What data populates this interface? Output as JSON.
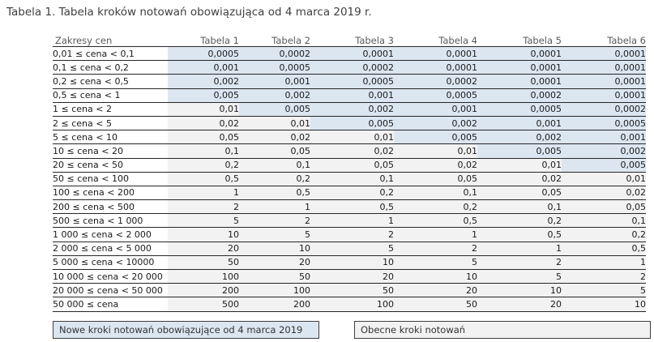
{
  "title": "Tabela 1. Tabela kroków notowań obowiązująca od 4 marca 2019 r.",
  "colors": {
    "new_fill": "#dce6f1",
    "current_fill": "#f2f2f2"
  },
  "table": {
    "columns": [
      "Zakresy cen",
      "Tabela 1",
      "Tabela 2",
      "Tabela 3",
      "Tabela 4",
      "Tabela 5",
      "Tabela 6"
    ],
    "rows": [
      {
        "range": "0,01 ≤ cena < 0,1",
        "values": [
          "0,0005",
          "0,0002",
          "0,0001",
          "0,0001",
          "0,0001",
          "0,0001"
        ],
        "new_flags": [
          true,
          true,
          true,
          true,
          true,
          true
        ]
      },
      {
        "range": "0,1 ≤ cena < 0,2",
        "values": [
          "0,001",
          "0,0005",
          "0,0002",
          "0,0001",
          "0,0001",
          "0,0001"
        ],
        "new_flags": [
          true,
          true,
          true,
          true,
          true,
          true
        ]
      },
      {
        "range": "0,2 ≤ cena < 0,5",
        "values": [
          "0,002",
          "0,001",
          "0,0005",
          "0,0002",
          "0,0001",
          "0,0001"
        ],
        "new_flags": [
          true,
          true,
          true,
          true,
          true,
          true
        ]
      },
      {
        "range": "0,5 ≤ cena < 1",
        "values": [
          "0,005",
          "0,002",
          "0,001",
          "0,0005",
          "0,0002",
          "0,0001"
        ],
        "new_flags": [
          true,
          true,
          true,
          true,
          true,
          true
        ]
      },
      {
        "range": "1 ≤ cena < 2",
        "values": [
          "0,01",
          "0,005",
          "0,002",
          "0,001",
          "0,0005",
          "0,0002"
        ],
        "new_flags": [
          false,
          true,
          true,
          true,
          true,
          true
        ]
      },
      {
        "range": "2 ≤ cena < 5",
        "values": [
          "0,02",
          "0,01",
          "0,005",
          "0,002",
          "0,001",
          "0,0005"
        ],
        "new_flags": [
          false,
          false,
          true,
          true,
          true,
          true
        ]
      },
      {
        "range": "5 ≤ cena < 10",
        "values": [
          "0,05",
          "0,02",
          "0,01",
          "0,005",
          "0,002",
          "0,001"
        ],
        "new_flags": [
          false,
          false,
          false,
          true,
          true,
          true
        ]
      },
      {
        "range": "10 ≤ cena < 20",
        "values": [
          "0,1",
          "0,05",
          "0,02",
          "0,01",
          "0,005",
          "0,002"
        ],
        "new_flags": [
          false,
          false,
          false,
          false,
          true,
          true
        ]
      },
      {
        "range": "20 ≤ cena < 50",
        "values": [
          "0,2",
          "0,1",
          "0,05",
          "0,02",
          "0,01",
          "0,005"
        ],
        "new_flags": [
          false,
          false,
          false,
          false,
          false,
          true
        ]
      },
      {
        "range": "50 ≤ cena < 100",
        "values": [
          "0,5",
          "0,2",
          "0,1",
          "0,05",
          "0,02",
          "0,01"
        ],
        "new_flags": [
          false,
          false,
          false,
          false,
          false,
          false
        ]
      },
      {
        "range": "100 ≤ cena < 200",
        "values": [
          "1",
          "0,5",
          "0,2",
          "0,1",
          "0,05",
          "0,02"
        ],
        "new_flags": [
          false,
          false,
          false,
          false,
          false,
          false
        ]
      },
      {
        "range": "200 ≤ cena < 500",
        "values": [
          "2",
          "1",
          "0,5",
          "0,2",
          "0,1",
          "0,05"
        ],
        "new_flags": [
          false,
          false,
          false,
          false,
          false,
          false
        ]
      },
      {
        "range": "500 ≤ cena < 1 000",
        "values": [
          "5",
          "2",
          "1",
          "0,5",
          "0,2",
          "0,1"
        ],
        "new_flags": [
          false,
          false,
          false,
          false,
          false,
          false
        ]
      },
      {
        "range": "1 000 ≤ cena < 2 000",
        "values": [
          "10",
          "5",
          "2",
          "1",
          "0,5",
          "0,2"
        ],
        "new_flags": [
          false,
          false,
          false,
          false,
          false,
          false
        ]
      },
      {
        "range": "2 000 ≤ cena < 5 000",
        "values": [
          "20",
          "10",
          "5",
          "2",
          "1",
          "0,5"
        ],
        "new_flags": [
          false,
          false,
          false,
          false,
          false,
          false
        ]
      },
      {
        "range": "5 000 ≤ cena < 10000",
        "values": [
          "50",
          "20",
          "10",
          "5",
          "2",
          "1"
        ],
        "new_flags": [
          false,
          false,
          false,
          false,
          false,
          false
        ]
      },
      {
        "range": "10 000 ≤ cena < 20 000",
        "values": [
          "100",
          "50",
          "20",
          "10",
          "5",
          "2"
        ],
        "new_flags": [
          false,
          false,
          false,
          false,
          false,
          false
        ]
      },
      {
        "range": "20 000 ≤ cena < 50 000",
        "values": [
          "200",
          "100",
          "50",
          "20",
          "10",
          "5"
        ],
        "new_flags": [
          false,
          false,
          false,
          false,
          false,
          false
        ]
      },
      {
        "range": "50 000 ≤ cena",
        "values": [
          "500",
          "200",
          "100",
          "50",
          "20",
          "10"
        ],
        "new_flags": [
          false,
          false,
          false,
          false,
          false,
          false
        ]
      }
    ]
  },
  "legend": {
    "new_label": "Nowe kroki notowań obowiązujące od 4 marca 2019",
    "current_label": "Obecne kroki notowań"
  }
}
